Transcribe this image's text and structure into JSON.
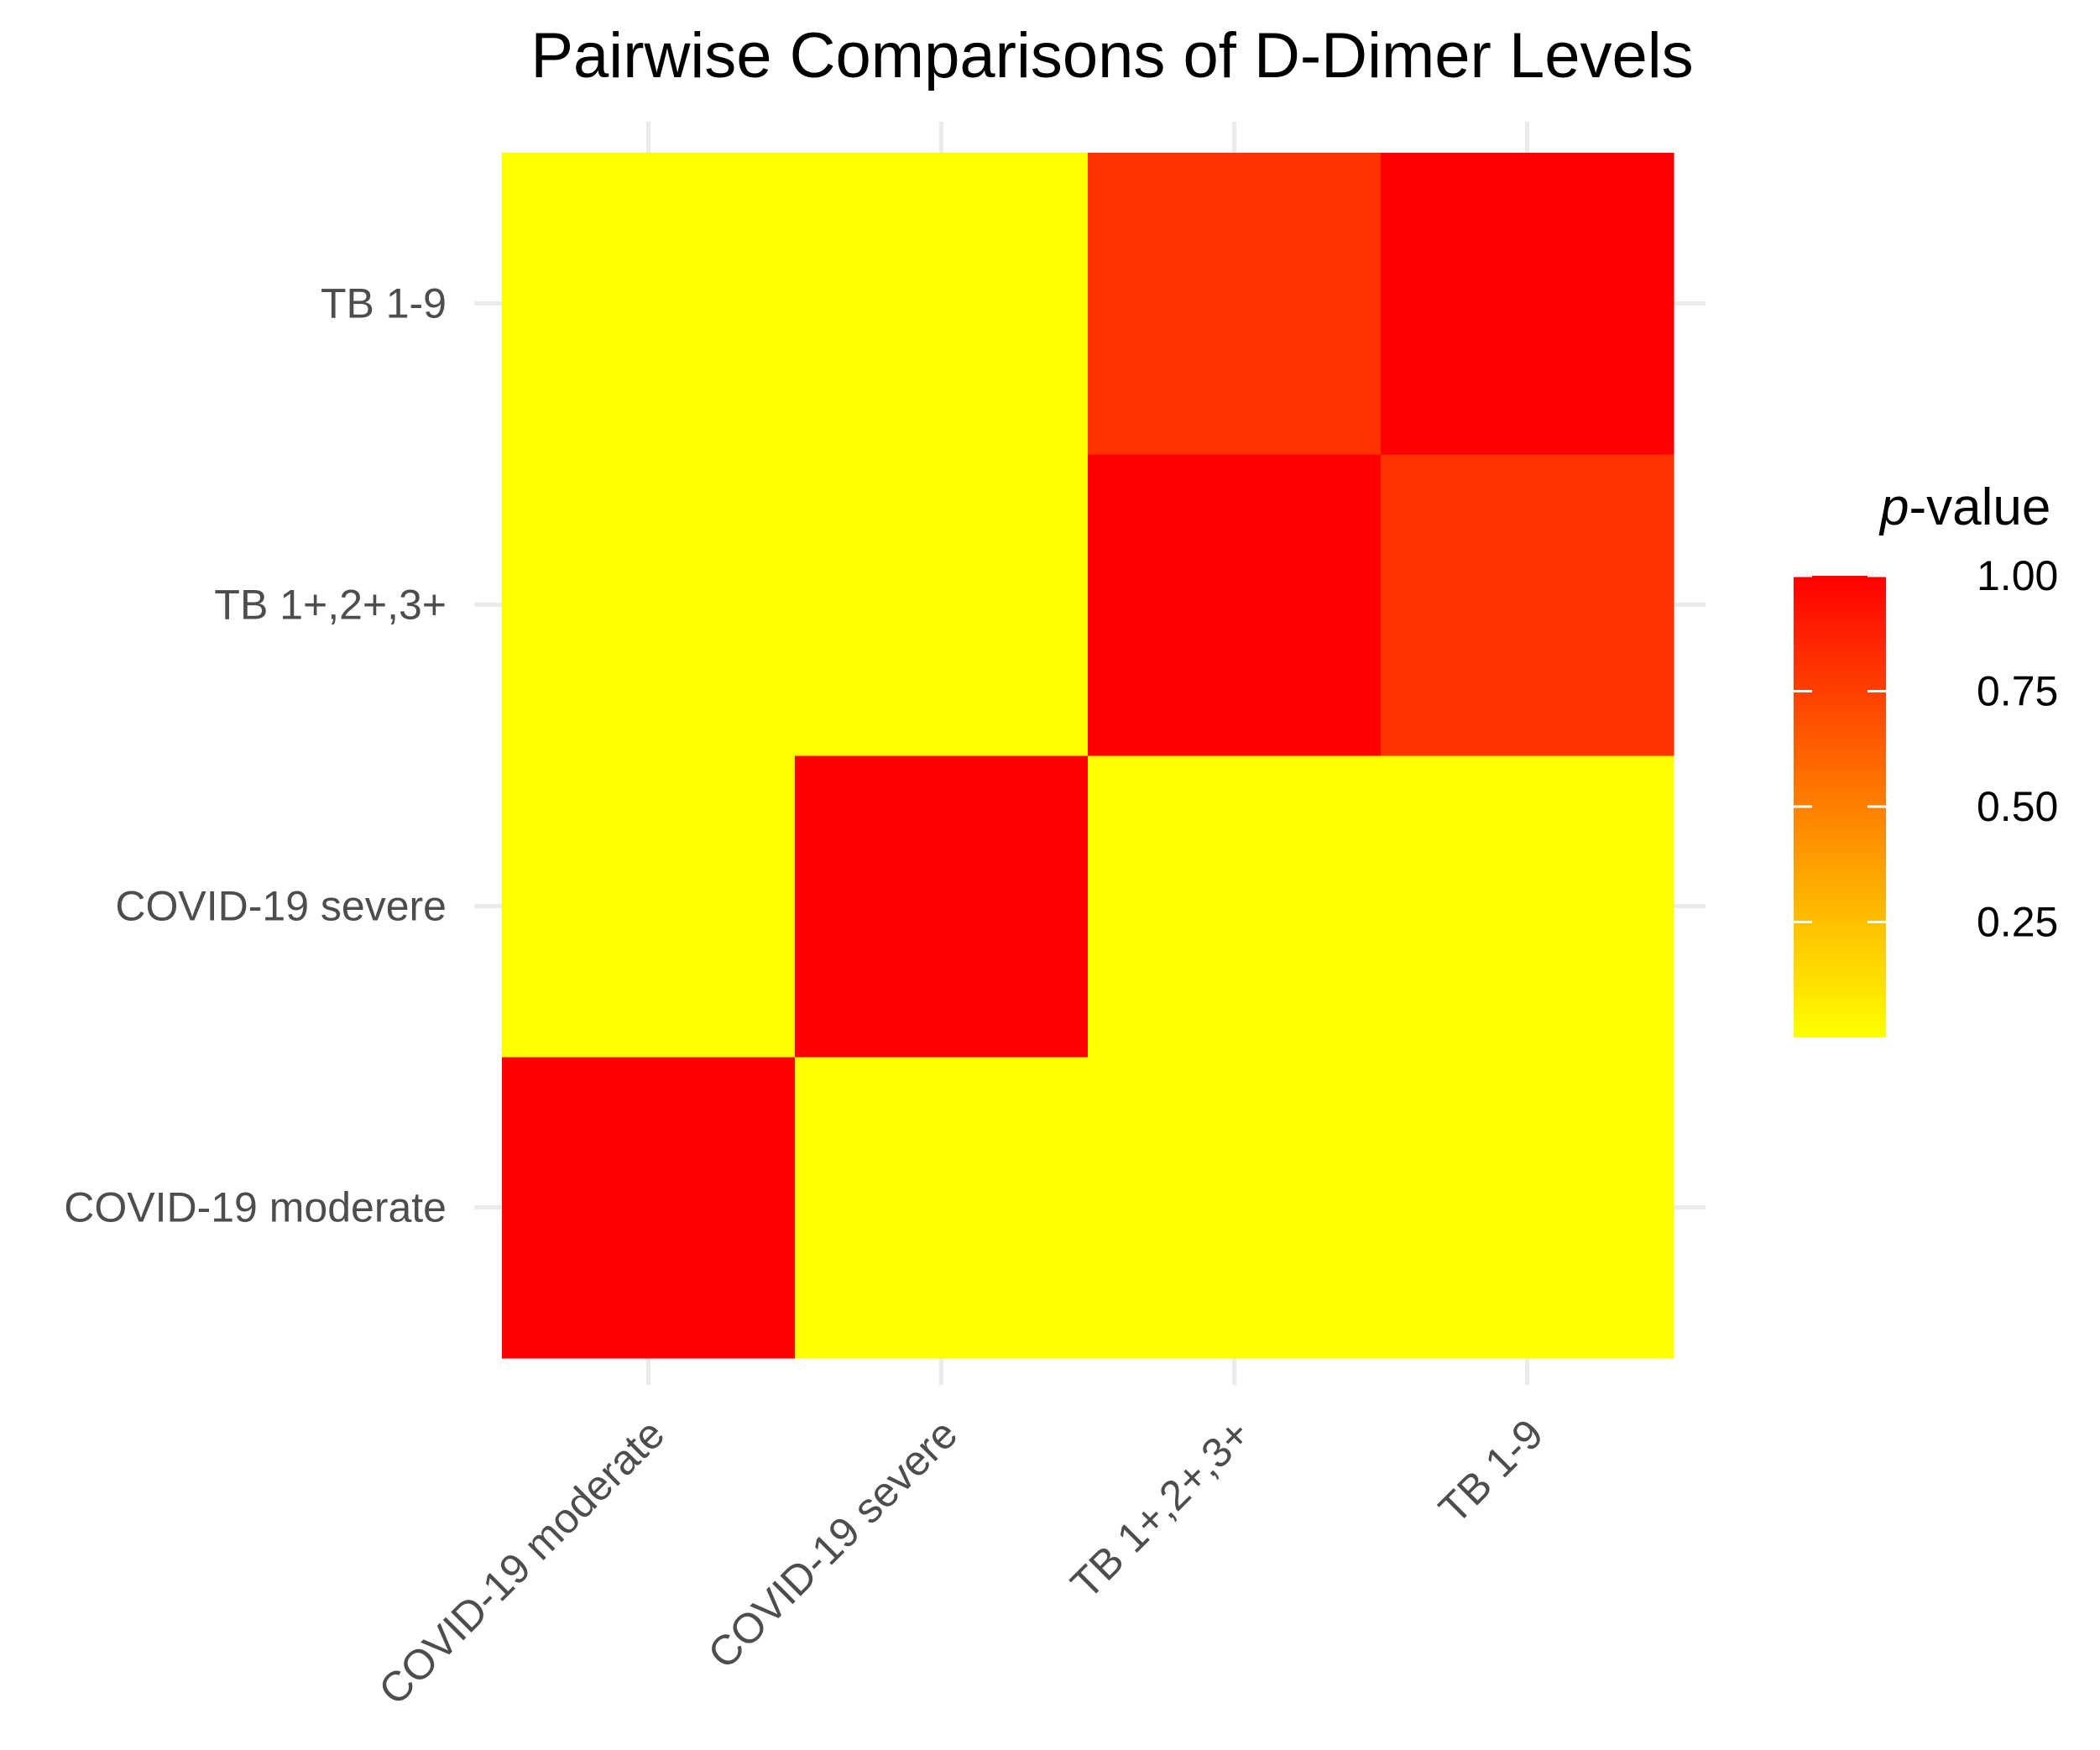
{
  "chart_data": {
    "type": "heatmap",
    "title": "Pairwise Comparisons of D-Dimer Levels",
    "xlabel": "",
    "ylabel": "",
    "categories": [
      "COVID-19 moderate",
      "COVID-19 severe",
      "TB 1+,2+,3+",
      "TB 1-9"
    ],
    "matrix": [
      [
        1.0,
        0.0,
        0.0,
        0.0
      ],
      [
        0.0,
        1.0,
        0.0,
        0.0
      ],
      [
        0.0,
        0.0,
        1.0,
        0.8
      ],
      [
        0.0,
        0.0,
        0.8,
        1.0
      ]
    ],
    "legend": {
      "title_italic": "p",
      "title_rest": "-value",
      "ticks": [
        0.25,
        0.5,
        0.75,
        1.0
      ],
      "tick_labels": [
        "0.25",
        "0.50",
        "0.75",
        "1.00"
      ],
      "range": [
        0.0,
        1.0
      ],
      "low_color": "#ffff00",
      "high_color": "#ff0000",
      "placement": "right"
    }
  }
}
